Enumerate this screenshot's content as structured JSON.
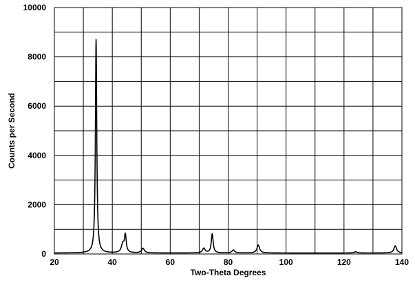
{
  "chart_data": {
    "type": "line",
    "title": "",
    "xlabel": "Two-Theta Degrees",
    "ylabel": "Counts per Second",
    "xlim": [
      20,
      140
    ],
    "ylim": [
      0,
      10000
    ],
    "x_ticks": [
      20,
      40,
      60,
      80,
      100,
      120,
      140
    ],
    "y_ticks": [
      0,
      2000,
      4000,
      6000,
      8000,
      10000
    ],
    "x_tick_labels": [
      "20",
      "40",
      "60",
      "80",
      "100",
      "120",
      "140"
    ],
    "y_tick_labels": [
      "0",
      "2000",
      "4000",
      "6000",
      "8000",
      "10000"
    ],
    "x_gridlines": [
      20,
      30,
      40,
      50,
      60,
      70,
      80,
      90,
      100,
      110,
      120,
      130,
      140
    ],
    "y_gridlines": [
      0,
      1000,
      2000,
      3000,
      4000,
      5000,
      6000,
      7000,
      8000,
      9000,
      10000
    ],
    "grid": true,
    "legend": "none",
    "line_color": "#000000",
    "series": [
      {
        "baseline": 40,
        "peaks": [
          {
            "x": 34.4,
            "y": 8700
          },
          {
            "x": 43.6,
            "y": 380
          },
          {
            "x": 44.5,
            "y": 750
          },
          {
            "x": 50.6,
            "y": 230
          },
          {
            "x": 71.6,
            "y": 230
          },
          {
            "x": 74.5,
            "y": 820
          },
          {
            "x": 81.8,
            "y": 160
          },
          {
            "x": 90.4,
            "y": 360
          },
          {
            "x": 124.0,
            "y": 90
          },
          {
            "x": 137.7,
            "y": 330
          }
        ]
      }
    ]
  }
}
